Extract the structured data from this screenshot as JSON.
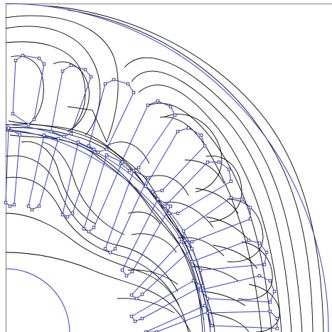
{
  "colors": {
    "background": "#ffffff",
    "geometry": "#2a3fd0",
    "flux_lines": "#000000",
    "frame": "#7a7a7a",
    "nodes": "#1a1a7a"
  },
  "view": {
    "kind": "quarter-section machine cross-section",
    "elements": [
      "outer-arc",
      "airgap-arcs",
      "rotor-bore-arc",
      "stator-slots",
      "rotor-slots",
      "flux-contours",
      "mesh-nodes"
    ]
  }
}
